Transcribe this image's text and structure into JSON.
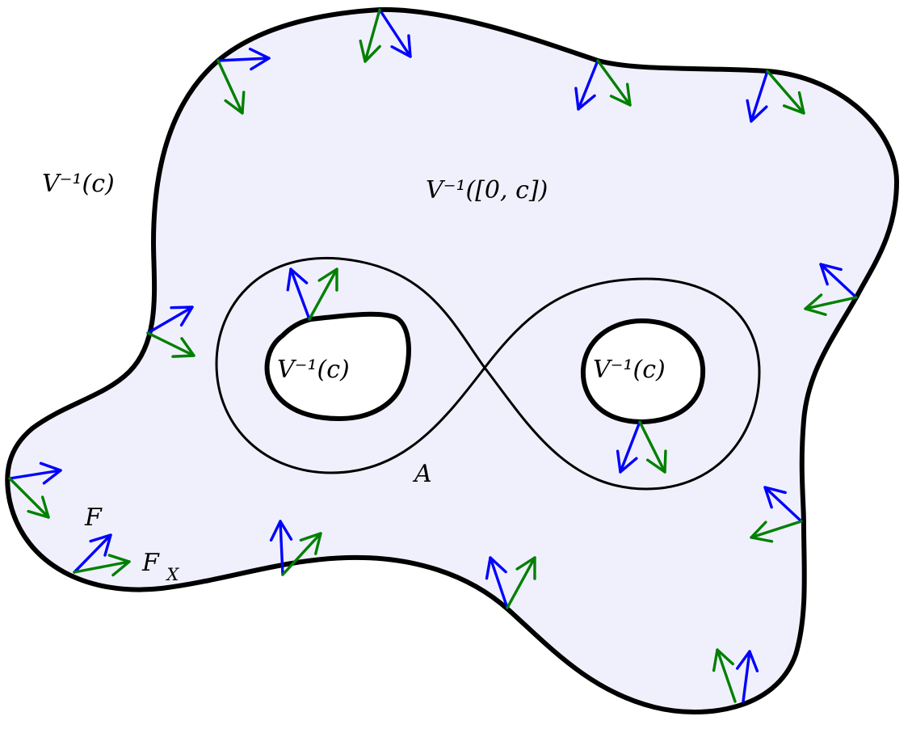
{
  "colors": {
    "region_fill": "#f0f0fc",
    "boundary": "#000000",
    "field_F": "#0000ff",
    "field_FX": "#008000"
  },
  "labels": {
    "outer_level_set": "V⁻¹(c)",
    "sublevel_set": "V⁻¹([0, c])",
    "hole_left": "V⁻¹(c)",
    "hole_right": "V⁻¹(c)",
    "attractor": "A",
    "field_F": "F",
    "field_FX_base": "F",
    "field_FX_sub": "X"
  }
}
